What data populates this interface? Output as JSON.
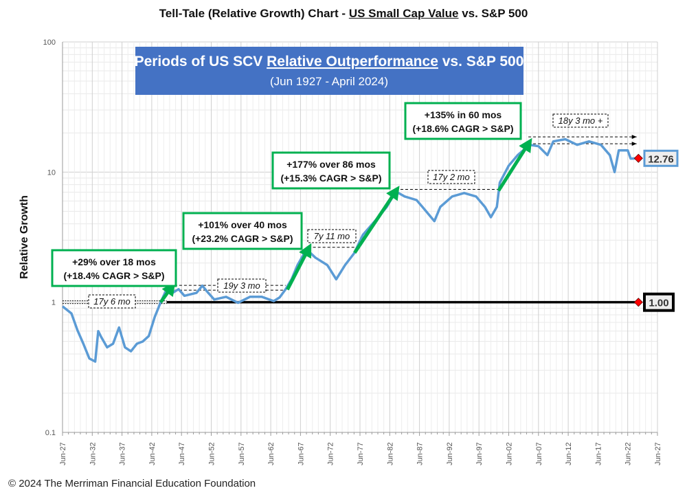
{
  "title": {
    "prefix": "Tell-Tale (Relative Growth) Chart - ",
    "underlined": "US Small Cap Value",
    "suffix": " vs. S&P 500"
  },
  "footer": "© 2024 The Merriman Financial Education Foundation",
  "chart_data": {
    "type": "line",
    "ylabel": "Relative Growth",
    "yscale": "log",
    "ylim": [
      0.1,
      100
    ],
    "yticks": [
      "0.1",
      "1",
      "10",
      "100"
    ],
    "xlim": [
      1927.5,
      2027.5
    ],
    "xticks": [
      "Jun-27",
      "Jun-32",
      "Jun-37",
      "Jun-42",
      "Jun-47",
      "Jun-52",
      "Jun-57",
      "Jun-62",
      "Jun-67",
      "Jun-72",
      "Jun-77",
      "Jun-82",
      "Jun-87",
      "Jun-92",
      "Jun-97",
      "Jun-02",
      "Jun-07",
      "Jun-12",
      "Jun-17",
      "Jun-22",
      "Jun-27"
    ],
    "grid": true,
    "box": {
      "title_pre": "Periods of US SCV ",
      "title_u": "Relative Outperformance",
      "title_post": " vs. S&P 500",
      "subtitle": "(Jun 1927 - April 2024)"
    },
    "colors": {
      "series": "#5b9bd5",
      "baseline": "#000000",
      "arrow": "#00b050",
      "box": "#4472c4",
      "marker": "#ff0000"
    },
    "series": [
      {
        "x": [
          1927.5,
          1929,
          1930,
          1931,
          1932,
          1933,
          1933.5,
          1934,
          1935,
          1936,
          1937,
          1938,
          1939,
          1940,
          1941,
          1942,
          1943,
          1944,
          1945,
          1946,
          1947,
          1948,
          1950,
          1951,
          1952,
          1953,
          1955,
          1957,
          1959,
          1961,
          1963,
          1964,
          1965,
          1966,
          1967,
          1968.5,
          1970,
          1972,
          1973.5,
          1975,
          1976.5,
          1978,
          1980,
          1982,
          1983.5,
          1985,
          1987,
          1988,
          1990,
          1991,
          1993,
          1995,
          1997,
          1998.5,
          1999.5,
          2000.5,
          2001,
          2002.5,
          2004,
          2006,
          2007.5,
          2009,
          2010,
          2012,
          2014,
          2016,
          2018,
          2019.5,
          2020.3,
          2021,
          2022.5,
          2023,
          2024.3
        ],
        "y": [
          0.93,
          0.82,
          0.61,
          0.48,
          0.37,
          0.35,
          0.6,
          0.54,
          0.45,
          0.48,
          0.64,
          0.45,
          0.42,
          0.48,
          0.5,
          0.55,
          0.77,
          1.0,
          1.26,
          1.18,
          1.26,
          1.12,
          1.18,
          1.34,
          1.18,
          1.05,
          1.1,
          0.99,
          1.1,
          1.1,
          1.02,
          1.09,
          1.26,
          1.5,
          1.93,
          2.55,
          2.2,
          1.93,
          1.5,
          1.93,
          2.37,
          3.3,
          4.2,
          5.4,
          7.1,
          6.5,
          6.1,
          5.4,
          4.2,
          5.4,
          6.5,
          6.9,
          6.5,
          5.4,
          4.5,
          5.4,
          8.3,
          11.2,
          13.5,
          16.2,
          15.8,
          13.5,
          17.2,
          17.9,
          16.2,
          17.2,
          16.2,
          13.5,
          10,
          14.7,
          14.7,
          12.7,
          12.76
        ]
      }
    ],
    "baseline": {
      "value": 1.0,
      "label": "1.00"
    },
    "end_label": "12.76",
    "annotations": [
      {
        "line1": "+29% over 18 mos",
        "line2": "(+18.4% CAGR > S&P)"
      },
      {
        "line1": "+101% over 40 mos",
        "line2": "(+23.2% CAGR > S&P)"
      },
      {
        "line1": "+177% over 86 mos",
        "line2": "(+15.3% CAGR > S&P)"
      },
      {
        "line1": "+135% in 60 mos",
        "line2": "(+18.6% CAGR > S&P)"
      }
    ],
    "arrows": [
      {
        "from": [
          1944,
          1.0
        ],
        "to": [
          1945.8,
          1.3
        ]
      },
      {
        "from": [
          1965.3,
          1.25
        ],
        "to": [
          1968.8,
          2.55
        ]
      },
      {
        "from": [
          1976.6,
          2.4
        ],
        "to": [
          1983.5,
          7.1
        ]
      },
      {
        "from": [
          2000.8,
          7.2
        ],
        "to": [
          2005.8,
          16.5
        ]
      }
    ],
    "durations": [
      {
        "label": "17y 6 mo",
        "from": 1927.5,
        "to": 1945.0,
        "level": 1.0
      },
      {
        "label": "19y 3 mo",
        "from": 1945.5,
        "to": 1965.0,
        "level": 1.3
      },
      {
        "label": "7y 11 mo",
        "from": 1968.8,
        "to": 1976.6,
        "level": 2.55
      },
      {
        "label": "17y 2 mo",
        "from": 1983.5,
        "to": 2000.8,
        "level": 7.1
      },
      {
        "label": "18y 3 mo +",
        "from": 2005.8,
        "to": 2024.0,
        "level": 16.5
      }
    ]
  }
}
